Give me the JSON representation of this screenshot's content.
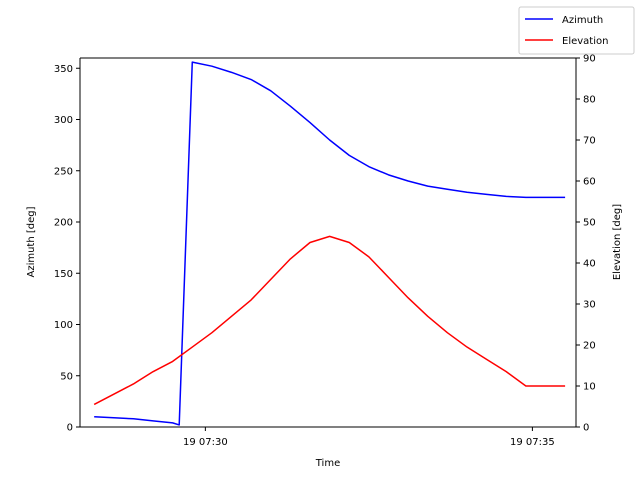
{
  "chart_data": {
    "type": "line",
    "xlabel": "Time",
    "ylabel_left": "Azimuth [deg]",
    "ylabel_right": "Elevation [deg]",
    "x_ticks": [
      {
        "label": "19 07:30",
        "t": 450
      },
      {
        "label": "19 07:35",
        "t": 750
      }
    ],
    "xlim": [
      335,
      790
    ],
    "ylim_left": [
      0,
      360
    ],
    "ylim_right": [
      0,
      90
    ],
    "yticks_left": [
      0,
      50,
      100,
      150,
      200,
      250,
      300,
      350
    ],
    "yticks_right": [
      0,
      10,
      20,
      30,
      40,
      50,
      60,
      70,
      80,
      90
    ],
    "grid": false,
    "legend_position": "top-right",
    "x_times_seconds_after_0724": [
      348,
      384,
      420,
      456,
      492,
      528,
      564,
      600,
      636,
      672,
      708,
      744,
      780
    ],
    "series": [
      {
        "name": "Azimuth",
        "axis": "left",
        "color": "#0000ff",
        "x_seconds": [
          348,
          366,
          384,
          402,
          420,
          426,
          438,
          456,
          474,
          492,
          510,
          528,
          546,
          564,
          582,
          600,
          618,
          636,
          654,
          672,
          690,
          708,
          726,
          744,
          762,
          780
        ],
        "values": [
          10,
          9,
          8,
          6,
          4,
          2,
          356,
          352,
          346,
          339,
          328,
          313,
          297,
          280,
          265,
          254,
          246,
          240,
          235,
          232,
          229,
          227,
          225,
          224,
          224,
          224
        ]
      },
      {
        "name": "Elevation",
        "axis": "right",
        "color": "#ff0000",
        "x_seconds": [
          348,
          366,
          384,
          402,
          420,
          438,
          456,
          474,
          492,
          510,
          528,
          546,
          564,
          582,
          600,
          618,
          636,
          654,
          672,
          690,
          708,
          726,
          744,
          762,
          780
        ],
        "values": [
          5.5,
          8,
          10.5,
          13.5,
          16,
          19.5,
          23,
          27,
          31,
          36,
          41,
          45,
          46.5,
          45,
          41.5,
          36.5,
          31.5,
          27,
          23,
          19.5,
          16.5,
          13.5,
          10,
          10,
          10
        ]
      }
    ]
  }
}
